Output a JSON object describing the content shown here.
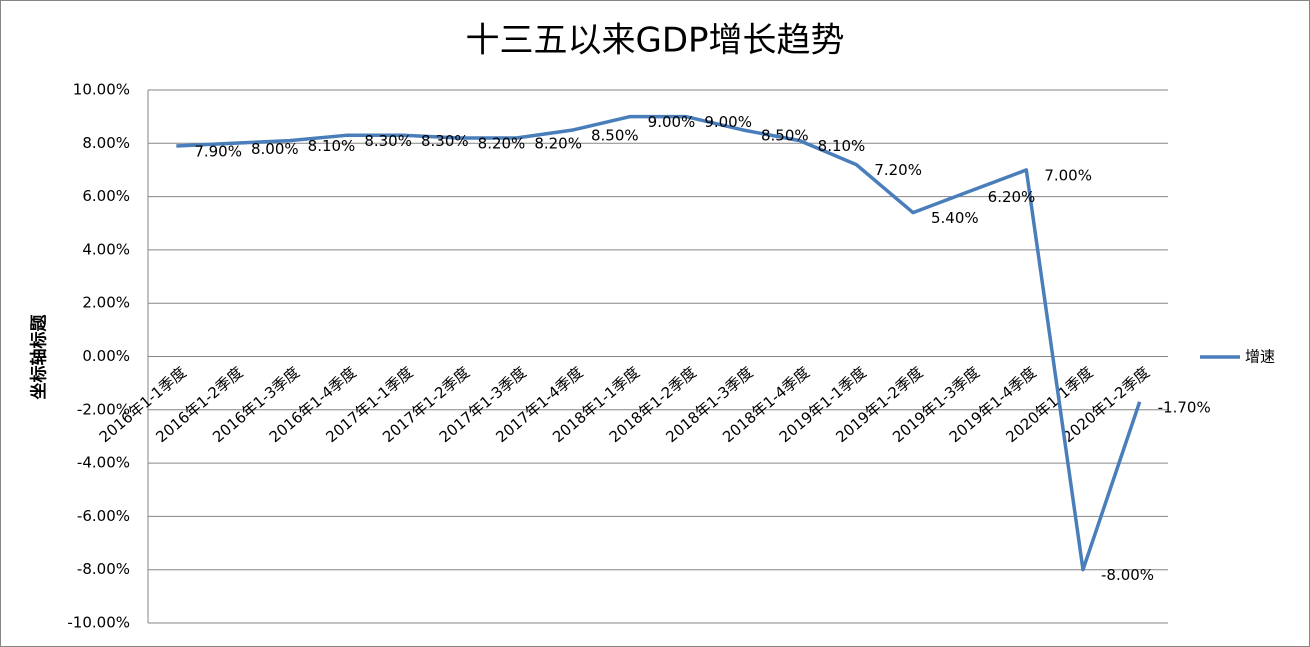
{
  "chart_data": {
    "type": "line",
    "title": "十三五以来GDP增长趋势",
    "y_label": "坐标轴标题",
    "categories": [
      "2016年1-1季度",
      "2016年1-2季度",
      "2016年1-3季度",
      "2016年1-4季度",
      "2017年1-1季度",
      "2017年1-2季度",
      "2017年1-3季度",
      "2017年1-4季度",
      "2018年1-1季度",
      "2018年1-2季度",
      "2018年1-3季度",
      "2018年1-4季度",
      "2019年1-1季度",
      "2019年1-2季度",
      "2019年1-3季度",
      "2019年1-4季度",
      "2020年1-1季度",
      "2020年1-2季度"
    ],
    "series": [
      {
        "name": "增速",
        "color": "#4a7ebb",
        "values": [
          7.9,
          8.0,
          8.1,
          8.3,
          8.3,
          8.2,
          8.2,
          8.5,
          9.0,
          9.0,
          8.5,
          8.1,
          7.2,
          5.4,
          6.2,
          7.0,
          -8.0,
          -1.7
        ],
        "value_labels": [
          "7.90%",
          "8.00%",
          "8.10%",
          "8.30%",
          "8.30%",
          "8.20%",
          "8.20%",
          "8.50%",
          "9.00%",
          "9.00%",
          "8.50%",
          "8.10%",
          "7.20%",
          "5.40%",
          "6.20%",
          "7.00%",
          "-8.00%",
          "-1.70%"
        ]
      }
    ],
    "ylim": [
      -10,
      10
    ],
    "yticks": [
      {
        "value": -10,
        "label": "-10.00%"
      },
      {
        "value": -8,
        "label": "-8.00%"
      },
      {
        "value": -6,
        "label": "-6.00%"
      },
      {
        "value": -4,
        "label": "-4.00%"
      },
      {
        "value": -2,
        "label": "-2.00%"
      },
      {
        "value": 0,
        "label": "0.00%"
      },
      {
        "value": 2,
        "label": "2.00%"
      },
      {
        "value": 4,
        "label": "4.00%"
      },
      {
        "value": 6,
        "label": "6.00%"
      },
      {
        "value": 8,
        "label": "8.00%"
      },
      {
        "value": 10,
        "label": "10.00%"
      }
    ],
    "grid": true,
    "legend": "right"
  }
}
